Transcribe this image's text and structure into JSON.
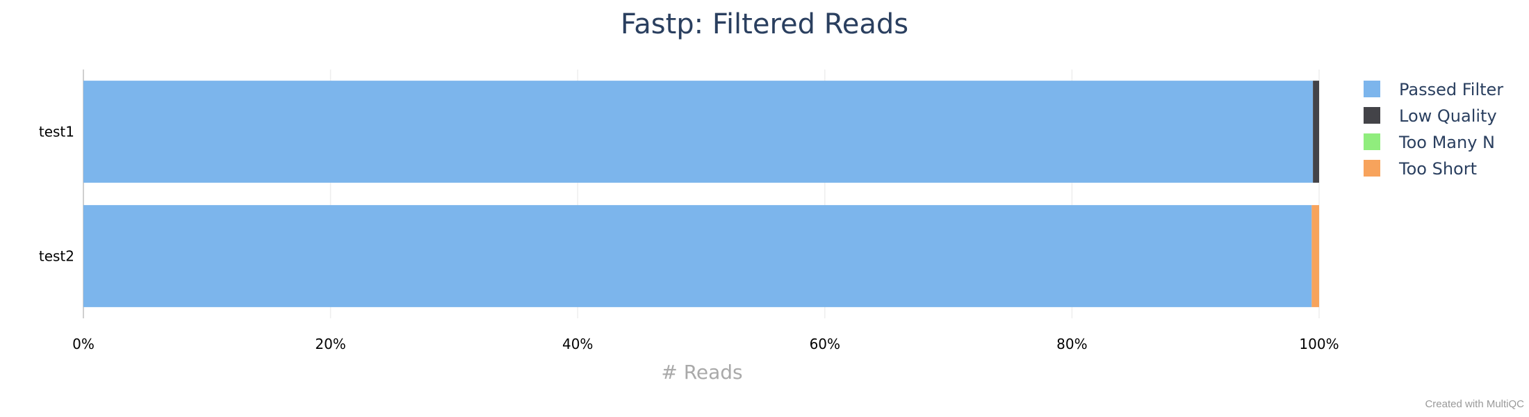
{
  "chart_data": {
    "type": "bar",
    "orientation": "horizontal",
    "stacked": true,
    "normalized": true,
    "title": "Fastp: Filtered Reads",
    "xlabel": "# Reads",
    "ylabel": "",
    "xlim": [
      0,
      100
    ],
    "x_ticks": [
      "0%",
      "20%",
      "40%",
      "60%",
      "80%",
      "100%"
    ],
    "categories": [
      "test1",
      "test2"
    ],
    "series": [
      {
        "name": "Passed Filter",
        "color": "#7cb5ec",
        "values": [
          99.5,
          99.4
        ]
      },
      {
        "name": "Low Quality",
        "color": "#434348",
        "values": [
          0.5,
          0.0
        ]
      },
      {
        "name": "Too Many N",
        "color": "#90ed7d",
        "values": [
          0.0,
          0.0
        ]
      },
      {
        "name": "Too Short",
        "color": "#f7a35c",
        "values": [
          0.0,
          0.6
        ]
      }
    ],
    "grid": true,
    "legend": "top-right"
  },
  "credit": "Created with MultiQC"
}
